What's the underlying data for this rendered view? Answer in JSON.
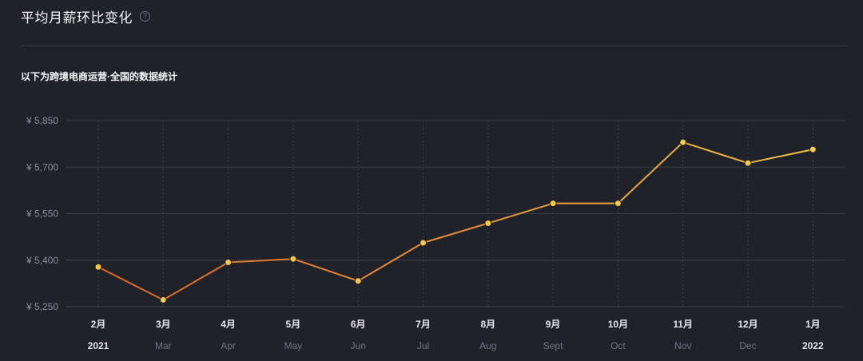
{
  "header": {
    "title": "平均月薪环比变化",
    "help_icon": "help-icon",
    "subtitle": "以下为跨境电商运营·全国的数据统计"
  },
  "chart_data": {
    "type": "line",
    "title": "平均月薪环比变化",
    "subtitle": "以下为跨境电商运营·全国的数据统计",
    "categories": [
      "2月",
      "3月",
      "4月",
      "5月",
      "6月",
      "7月",
      "8月",
      "9月",
      "10月",
      "11月",
      "12月",
      "1月"
    ],
    "category_sublabels": [
      "2021",
      "Mar",
      "Apr",
      "May",
      "Jun",
      "Jul",
      "Aug",
      "Sept",
      "Oct",
      "Nov",
      "Dec",
      "2022"
    ],
    "values": [
      5378,
      5272,
      5393,
      5404,
      5333,
      5456,
      5519,
      5583,
      5583,
      5780,
      5713,
      5757
    ],
    "ylim": [
      5250,
      5850
    ],
    "yticks": [
      5250,
      5400,
      5550,
      5700,
      5850
    ],
    "ytick_labels": [
      "¥ 5,250",
      "¥ 5,400",
      "¥ 5,550",
      "¥ 5,700",
      "¥ 5,850"
    ],
    "grid": true,
    "colors": {
      "line_start": "#e0642a",
      "line_end": "#f0bf45",
      "point": "#f7c948",
      "grid": "#3a3e48",
      "background": "#1f2229"
    }
  }
}
